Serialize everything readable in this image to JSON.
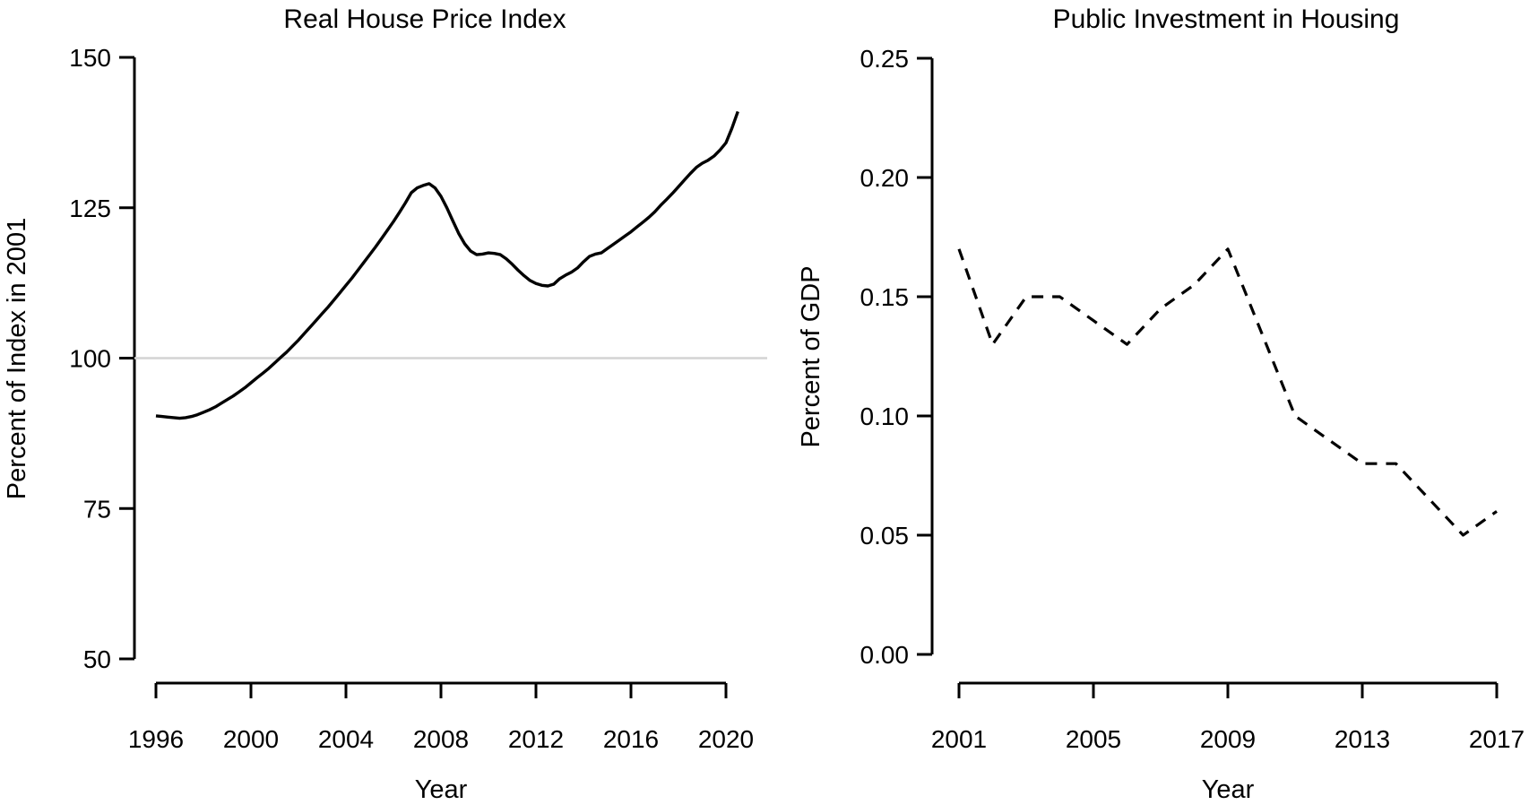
{
  "figure": {
    "background": "#ffffff",
    "axis_color": "#000000",
    "line_color": "#000000",
    "reference_line_color": "#d4d4d4"
  },
  "chart_data": [
    {
      "type": "line",
      "title": "Real House Price Index",
      "xlabel": "Year",
      "ylabel": "Percent of Index in 2001",
      "xlim": [
        1996,
        2020.5
      ],
      "ylim": [
        50,
        150
      ],
      "xticks": [
        1996,
        2000,
        2004,
        2008,
        2012,
        2016,
        2020
      ],
      "yticks": [
        50,
        75,
        100,
        125,
        150
      ],
      "ytick_labels": [
        "50",
        "75",
        "100",
        "125",
        "150"
      ],
      "grid": false,
      "legend": null,
      "reference_line": {
        "y": 100,
        "color": "#d4d4d4"
      },
      "line": {
        "style": "solid",
        "color": "#000000",
        "width": 3.4
      },
      "series": [
        {
          "name": "real-house-price-index",
          "x": [
            1996,
            1996.25,
            1996.5,
            1996.75,
            1997,
            1997.25,
            1997.5,
            1997.75,
            1998,
            1998.25,
            1998.5,
            1998.75,
            1999,
            1999.25,
            1999.5,
            1999.75,
            2000,
            2000.25,
            2000.5,
            2000.75,
            2001,
            2001.25,
            2001.5,
            2001.75,
            2002,
            2002.25,
            2002.5,
            2002.75,
            2003,
            2003.25,
            2003.5,
            2003.75,
            2004,
            2004.25,
            2004.5,
            2004.75,
            2005,
            2005.25,
            2005.5,
            2005.75,
            2006,
            2006.25,
            2006.5,
            2006.75,
            2007,
            2007.25,
            2007.5,
            2007.75,
            2008,
            2008.25,
            2008.5,
            2008.75,
            2009,
            2009.25,
            2009.5,
            2009.75,
            2010,
            2010.25,
            2010.5,
            2010.75,
            2011,
            2011.25,
            2011.5,
            2011.75,
            2012,
            2012.25,
            2012.5,
            2012.75,
            2013,
            2013.25,
            2013.5,
            2013.75,
            2014,
            2014.25,
            2014.5,
            2014.75,
            2015,
            2015.25,
            2015.5,
            2015.75,
            2016,
            2016.25,
            2016.5,
            2016.75,
            2017,
            2017.25,
            2017.5,
            2017.75,
            2018,
            2018.25,
            2018.5,
            2018.75,
            2019,
            2019.25,
            2019.5,
            2019.75,
            2020,
            2020.25,
            2020.5
          ],
          "values": [
            90.4,
            90.3,
            90.2,
            90.1,
            90,
            90.1,
            90.3,
            90.6,
            91,
            91.4,
            91.9,
            92.5,
            93.1,
            93.7,
            94.4,
            95.1,
            95.9,
            96.7,
            97.5,
            98.3,
            99.2,
            100.1,
            101,
            102,
            103,
            104.1,
            105.2,
            106.3,
            107.4,
            108.5,
            109.7,
            110.9,
            112.1,
            113.3,
            114.6,
            115.9,
            117.2,
            118.5,
            119.9,
            121.3,
            122.7,
            124.2,
            125.8,
            127.5,
            128.3,
            128.7,
            129,
            128.3,
            126.9,
            125,
            122.8,
            120.7,
            119,
            117.8,
            117.2,
            117.3,
            117.5,
            117.4,
            117.2,
            116.5,
            115.6,
            114.6,
            113.7,
            112.9,
            112.4,
            112.1,
            112,
            112.3,
            113.2,
            113.8,
            114.3,
            115,
            116,
            116.9,
            117.3,
            117.5,
            118.2,
            118.9,
            119.6,
            120.3,
            121,
            121.8,
            122.6,
            123.4,
            124.3,
            125.4,
            126.4,
            127.4,
            128.5,
            129.6,
            130.7,
            131.7,
            132.4,
            132.9,
            133.6,
            134.6,
            135.8,
            138.2,
            141
          ]
        }
      ]
    },
    {
      "type": "line",
      "title": "Public Investment in Housing",
      "xlabel": "Year",
      "ylabel": "Percent of GDP",
      "xlim": [
        2001,
        2017
      ],
      "ylim": [
        0,
        0.25
      ],
      "xticks": [
        2001,
        2005,
        2009,
        2013,
        2017
      ],
      "yticks": [
        0,
        0.05,
        0.1,
        0.15,
        0.2,
        0.25
      ],
      "ytick_labels": [
        "0.00",
        "0.05",
        "0.10",
        "0.15",
        "0.20",
        "0.25"
      ],
      "grid": false,
      "legend": null,
      "reference_line": null,
      "line": {
        "style": "dashed",
        "color": "#000000",
        "width": 3.2
      },
      "series": [
        {
          "name": "public-investment-in-housing",
          "x": [
            2001,
            2002,
            2003,
            2004,
            2005,
            2006,
            2007,
            2008,
            2009,
            2010,
            2011,
            2012,
            2013,
            2014,
            2015,
            2016,
            2017
          ],
          "values": [
            0.17,
            0.13,
            0.15,
            0.15,
            0.14,
            0.13,
            0.145,
            0.155,
            0.17,
            0.135,
            0.1,
            0.09,
            0.08,
            0.08,
            0.065,
            0.05,
            0.06
          ]
        }
      ]
    }
  ]
}
